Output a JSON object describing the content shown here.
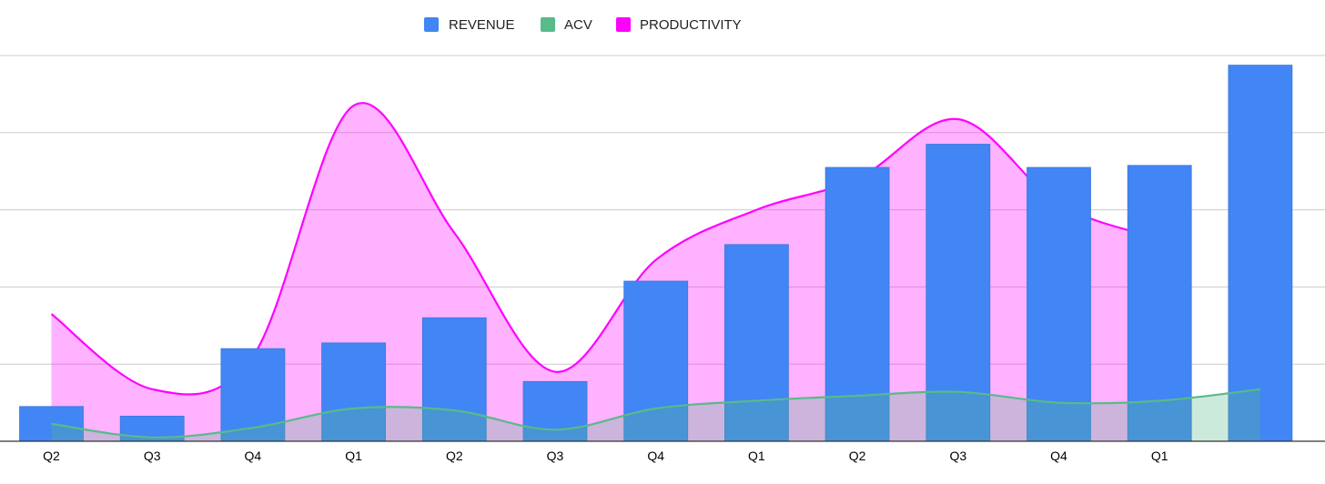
{
  "chart_data": {
    "type": "bar",
    "categories": [
      "Q2",
      "Q3",
      "Q4",
      "Q1",
      "Q2",
      "Q3",
      "Q4",
      "Q1",
      "Q2",
      "Q3",
      "Q4",
      "Q1",
      ""
    ],
    "series": [
      {
        "name": "REVENUE",
        "type": "bar",
        "color": "#4285F4",
        "values": [
          9,
          6.5,
          24,
          25.5,
          32,
          15.5,
          41.5,
          51,
          71,
          77,
          71,
          71.5,
          97.5
        ]
      },
      {
        "name": "ACV",
        "type": "area-line",
        "color": "#57BB8A",
        "values": [
          4.5,
          1,
          3.5,
          8.5,
          8,
          3,
          8.5,
          10.5,
          11.8,
          12.8,
          10,
          10.5,
          13.5
        ]
      },
      {
        "name": "PRODUCTIVITY",
        "type": "area-line",
        "color": "#FF00FF",
        "values": [
          33,
          13.5,
          22,
          87,
          54,
          18,
          47,
          60,
          68,
          83.5,
          61.5,
          52.5,
          null
        ]
      }
    ],
    "ylim": [
      0,
      100
    ],
    "gridlines": [
      20,
      40,
      60,
      80,
      100
    ],
    "y_tick_labels": false,
    "grid": true,
    "legend": "top-center",
    "title": "",
    "xlabel": "",
    "ylabel": ""
  }
}
